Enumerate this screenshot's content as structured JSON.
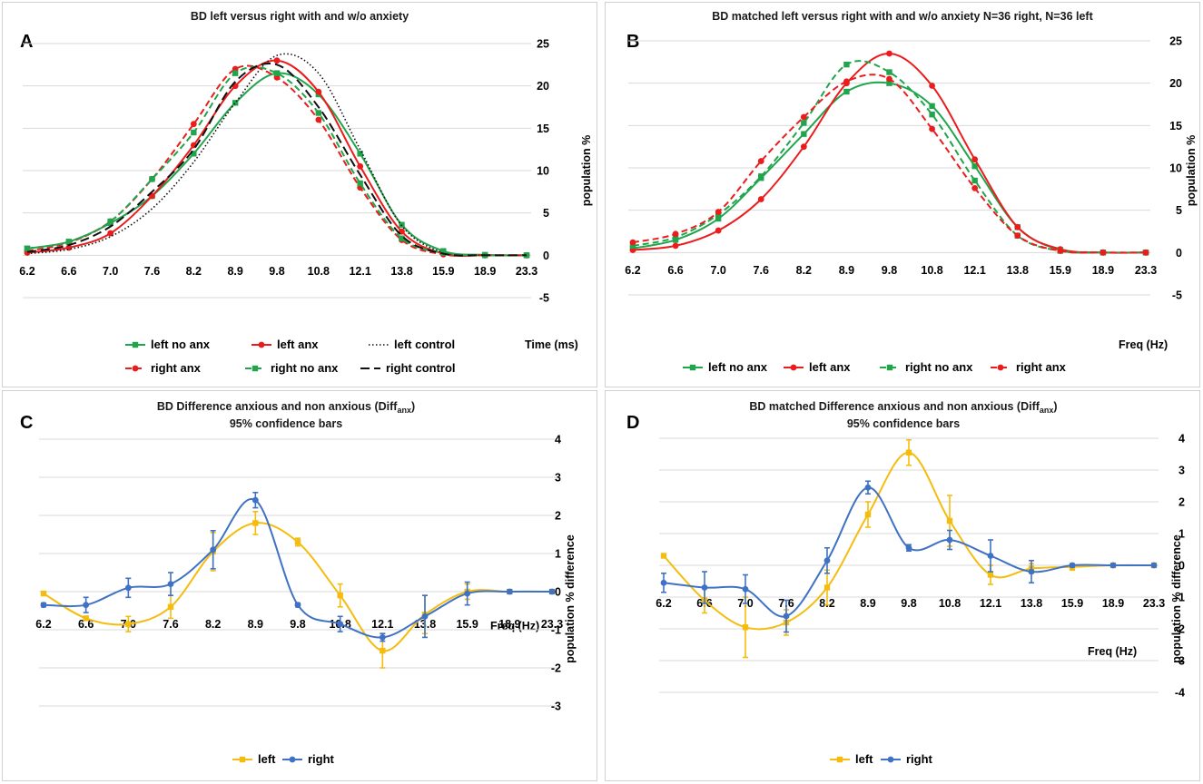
{
  "colors": {
    "green": "#21a54c",
    "red": "#ea1c1c",
    "black": "#111111",
    "yellow": "#f5bc10",
    "blue": "#3f72c4",
    "grid": "#d9d9d9"
  },
  "chart_data": [
    {
      "panel": "A",
      "type": "line",
      "title": "BD left versus right with and w/o anxiety",
      "xlabel": "Time (ms)",
      "ylabel": "population %",
      "categories": [
        "6.2",
        "6.6",
        "7.0",
        "7.6",
        "8.2",
        "8.9",
        "9.8",
        "10.8",
        "12.1",
        "13.8",
        "15.9",
        "18.9",
        "23.3"
      ],
      "yticks": [
        "25",
        "20",
        "15",
        "10",
        "5",
        "0",
        "-5"
      ],
      "ylim": [
        -5,
        25
      ],
      "grid": true,
      "legend_position": "bottom",
      "legend_rows": [
        [
          0,
          1,
          2
        ],
        [
          3,
          4,
          5
        ]
      ],
      "series": [
        {
          "name": "left no anx",
          "color": "green",
          "dash": "solid",
          "marker": "square",
          "values": [
            0.8,
            1.6,
            3.8,
            7,
            12,
            18,
            21.5,
            19,
            12,
            3.6,
            0.5,
            0.05,
            0
          ]
        },
        {
          "name": "left anx",
          "color": "red",
          "dash": "solid",
          "marker": "circle",
          "values": [
            0.3,
            0.9,
            2.6,
            7,
            13,
            20,
            23,
            19.3,
            10.5,
            2.8,
            0.2,
            0,
            0
          ]
        },
        {
          "name": "left control",
          "color": "black",
          "dash": "dot",
          "marker": "none",
          "values": [
            0.2,
            0.7,
            2.2,
            5.5,
            11,
            18,
            23.6,
            21.5,
            12.5,
            3.5,
            0.3,
            0,
            0
          ]
        },
        {
          "name": "right anx",
          "color": "red",
          "dash": "dash",
          "marker": "circle",
          "values": [
            0.5,
            1.5,
            4,
            9,
            15.5,
            22,
            21,
            16,
            8,
            1.8,
            0.1,
            0,
            0
          ]
        },
        {
          "name": "right no anx",
          "color": "green",
          "dash": "dash",
          "marker": "square",
          "values": [
            0.8,
            1.6,
            4,
            9,
            14.5,
            21.5,
            21.5,
            16.8,
            8.5,
            2,
            0.3,
            0,
            0
          ]
        },
        {
          "name": "right control",
          "color": "black",
          "dash": "longdash",
          "marker": "none",
          "values": [
            0.4,
            1.2,
            3.4,
            7.5,
            12.5,
            20.5,
            22.5,
            17.5,
            9.5,
            2.3,
            0.2,
            0,
            0
          ]
        }
      ]
    },
    {
      "panel": "B",
      "type": "line",
      "title": "BD matched left versus right with and w/o anxiety N=36 right, N=36 left",
      "xlabel": "Freq (Hz)",
      "ylabel": "population %",
      "categories": [
        "6.2",
        "6.6",
        "7.0",
        "7.6",
        "8.2",
        "8.9",
        "9.8",
        "10.8",
        "12.1",
        "13.8",
        "15.9",
        "18.9",
        "23.3"
      ],
      "yticks": [
        "25",
        "20",
        "15",
        "10",
        "5",
        "0",
        "-5"
      ],
      "ylim": [
        -5,
        25
      ],
      "grid": true,
      "legend_position": "bottom",
      "legend_rows": [
        [
          0,
          1,
          2,
          3
        ]
      ],
      "series": [
        {
          "name": "left no anx",
          "color": "green",
          "dash": "solid",
          "marker": "square",
          "values": [
            0.5,
            1.5,
            4,
            8.8,
            14,
            19,
            20,
            17.3,
            10.2,
            3,
            0.3,
            0,
            0
          ]
        },
        {
          "name": "left anx",
          "color": "red",
          "dash": "solid",
          "marker": "circle",
          "values": [
            0.3,
            0.8,
            2.6,
            6.3,
            12.5,
            20,
            23.5,
            19.7,
            11,
            3,
            0.4,
            0,
            0
          ]
        },
        {
          "name": "right no anx",
          "color": "green",
          "dash": "dash",
          "marker": "square",
          "values": [
            0.8,
            1.8,
            4.5,
            9,
            15.3,
            22.2,
            21.3,
            16.3,
            8.5,
            2,
            0.2,
            0,
            0
          ]
        },
        {
          "name": "right anx",
          "color": "red",
          "dash": "dash",
          "marker": "circle",
          "values": [
            1.2,
            2.2,
            4.8,
            10.8,
            16,
            20.2,
            20.5,
            14.6,
            7.6,
            2,
            0.2,
            0,
            0
          ]
        }
      ]
    },
    {
      "panel": "C",
      "type": "line",
      "title": "BD Difference anxious and non anxious (Diff",
      "title_sub": "anx",
      "title_close": ")",
      "subtitle": "95% confidence bars",
      "xlabel": "Freq (Hz)",
      "ylabel": "population % difference",
      "categories": [
        "6.2",
        "6.6",
        "7.0",
        "7.6",
        "8.2",
        "8.9",
        "9.8",
        "10.8",
        "12.1",
        "13.8",
        "15.9",
        "18.9",
        "23.3"
      ],
      "yticks": [
        "4",
        "3",
        "2",
        "1",
        "0",
        "-1",
        "-2",
        "-3"
      ],
      "ylim": [
        -3,
        4
      ],
      "grid": true,
      "legend_position": "bottom",
      "legend_rows": [
        [
          0,
          1
        ]
      ],
      "series": [
        {
          "name": "left",
          "color": "yellow",
          "dash": "solid",
          "marker": "square",
          "values": [
            -0.05,
            -0.7,
            -0.85,
            -0.4,
            1.05,
            1.8,
            1.3,
            -0.1,
            -1.55,
            -0.6,
            0,
            0,
            0
          ],
          "errors": [
            0.05,
            0.05,
            0.2,
            0.3,
            0.5,
            0.3,
            0.1,
            0.3,
            0.45,
            0.5,
            0.2,
            0.05,
            0.05
          ]
        },
        {
          "name": "right",
          "color": "blue",
          "dash": "solid",
          "marker": "circle",
          "values": [
            -0.35,
            -0.35,
            0.1,
            0.2,
            1.1,
            2.4,
            -0.35,
            -0.85,
            -1.2,
            -0.65,
            -0.05,
            0,
            0
          ],
          "errors": [
            0.05,
            0.2,
            0.25,
            0.3,
            0.5,
            0.2,
            0.05,
            0.2,
            0.1,
            0.55,
            0.3,
            0.05,
            0.05
          ]
        }
      ]
    },
    {
      "panel": "D",
      "type": "line",
      "title": "BD matched Difference anxious and non anxious (Diff",
      "title_sub": "anx",
      "title_close": ")",
      "subtitle": "95% confidence bars",
      "xlabel": "Freq (Hz)",
      "ylabel": "population % difference",
      "categories": [
        "6.2",
        "6.6",
        "7.0",
        "7.6",
        "8.2",
        "8.9",
        "9.8",
        "10.8",
        "12.1",
        "13.8",
        "15.9",
        "18.9",
        "23.3"
      ],
      "yticks": [
        "4",
        "3",
        "2",
        "1",
        "0",
        "-1",
        "-2",
        "-3",
        "-4"
      ],
      "ylim": [
        -4,
        4
      ],
      "grid": true,
      "legend_position": "bottom",
      "legend_rows": [
        [
          0,
          1
        ]
      ],
      "series": [
        {
          "name": "left",
          "color": "yellow",
          "dash": "solid",
          "marker": "square",
          "values": [
            0.3,
            -1.1,
            -1.95,
            -1.8,
            -0.7,
            1.6,
            3.55,
            1.4,
            -0.3,
            -0.1,
            -0.05,
            0,
            0
          ],
          "errors": [
            0.05,
            0.4,
            0.95,
            0.4,
            0.55,
            0.4,
            0.4,
            0.8,
            0.3,
            0.15,
            0.1,
            0.05,
            0.05
          ]
        },
        {
          "name": "right",
          "color": "blue",
          "dash": "solid",
          "marker": "circle",
          "values": [
            -0.55,
            -0.7,
            -0.75,
            -1.6,
            0.15,
            2.45,
            0.55,
            0.8,
            0.3,
            -0.2,
            0,
            0,
            0
          ],
          "errors": [
            0.3,
            0.5,
            0.45,
            0.5,
            0.4,
            0.2,
            0.1,
            0.3,
            0.5,
            0.35,
            0.05,
            0.05,
            0.05
          ]
        }
      ]
    }
  ]
}
